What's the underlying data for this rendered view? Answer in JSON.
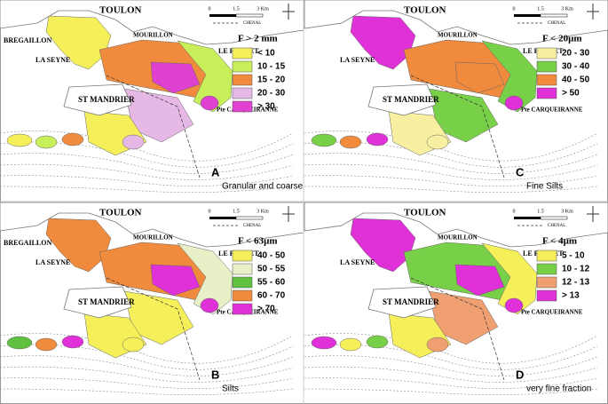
{
  "panels": [
    {
      "letter": "A",
      "caption": "Granular and coarse",
      "legend_title": "F > 2 mm",
      "legend": [
        {
          "label": "< 10",
          "color": "#f5f05a"
        },
        {
          "label": "10 - 15",
          "color": "#c8ee5a"
        },
        {
          "label": "15 - 20",
          "color": "#f08a3c"
        },
        {
          "label": "20 - 30",
          "color": "#e6b8e6"
        },
        {
          "label": "> 30",
          "color": "#e040d0"
        }
      ],
      "places": [
        "TOULON",
        "BREGAILLON",
        "MOURILLON",
        "LA SEYNE",
        "LE PRADET",
        "ST MANDRIER",
        "Pte CARQUEIRANNE"
      ]
    },
    {
      "letter": "C",
      "caption": "Fine Silts",
      "legend_title": "F < 20µm",
      "legend": [
        {
          "label": "20 - 30",
          "color": "#f8f0a0"
        },
        {
          "label": "30 - 40",
          "color": "#78d048"
        },
        {
          "label": "40 - 50",
          "color": "#f08a3c"
        },
        {
          "label": "> 50",
          "color": "#e030d8"
        }
      ],
      "places": [
        "TOULON",
        "MOURILLON",
        "LA SEYNE",
        "LE PRADET",
        "ST MANDRIER",
        "Pte CARQUEIRANNE"
      ]
    },
    {
      "letter": "B",
      "caption": "Silts",
      "legend_title": "F < 63µm",
      "legend": [
        {
          "label": "40 - 50",
          "color": "#f5f05a"
        },
        {
          "label": "50 - 55",
          "color": "#e8f0c8"
        },
        {
          "label": "55 - 60",
          "color": "#60c040"
        },
        {
          "label": "60 - 70",
          "color": "#f08a3c"
        },
        {
          "label": "> 70",
          "color": "#e030d8"
        }
      ],
      "places": [
        "TOULON",
        "BREGAILLON",
        "MOURILLON",
        "LA SEYNE",
        "LE PRADET",
        "ST MANDRIER",
        "Pte CARQUEIRANNE"
      ]
    },
    {
      "letter": "D",
      "caption": "very fine fraction",
      "legend_title": "F < 4µm",
      "legend": [
        {
          "label": "5 - 10",
          "color": "#f5f05a"
        },
        {
          "label": "10 - 12",
          "color": "#78d048"
        },
        {
          "label": "12 - 13",
          "color": "#f0a070"
        },
        {
          "label": "> 13",
          "color": "#e030d8"
        }
      ],
      "places": [
        "TOULON",
        "MOURILLON",
        "LA SEYNE",
        "LE PRADET",
        "ST MANDRIER",
        "Pte CARQUEIRANNE"
      ]
    }
  ],
  "scale": [
    "0",
    "1.5",
    "3 Km"
  ],
  "channel": "CHENAL"
}
